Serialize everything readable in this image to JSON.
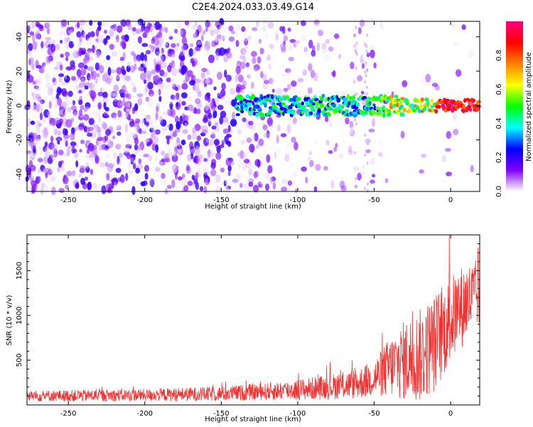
{
  "title": "C2E4.2024.033.03.49.G14",
  "chart_data": [
    {
      "type": "heatmap",
      "title": "C2E4.2024.033.03.49.G14",
      "xlabel": "Height of straight line (km)",
      "ylabel": "Frequency (Hz)",
      "xlim": [
        -277,
        19
      ],
      "ylim": [
        -50,
        49
      ],
      "xticks": [
        -250,
        -200,
        -150,
        -100,
        -50,
        0
      ],
      "yticks": [
        -40,
        -20,
        0,
        20,
        40
      ],
      "colorbar": {
        "label": "Normalized spectral amplitude",
        "ticks": [
          0.0,
          0.2,
          0.4,
          0.6,
          0.8
        ],
        "range": [
          0,
          1
        ],
        "colors": [
          "#ffffff",
          "#8000ff",
          "#0000ff",
          "#00ffff",
          "#00ff00",
          "#ffff00",
          "#ff8000",
          "#ff0000",
          "#ff0080"
        ]
      },
      "signal_band": {
        "start_km": -140,
        "end_km": 19,
        "center_hz": 0,
        "halfwidth_hz": 4
      },
      "noise_region_end_km": -80
    },
    {
      "type": "line",
      "xlabel": "Height of straight line (km)",
      "ylabel": "SNR (10 * v/v)",
      "xlim": [
        -277,
        19
      ],
      "ylim": [
        0,
        1900
      ],
      "xticks": [
        -250,
        -200,
        -150,
        -100,
        -50,
        0
      ],
      "yticks": [
        500,
        1000,
        1500
      ],
      "color": "#ee3333",
      "envelope": [
        {
          "x": -277,
          "base": 100,
          "amp": 90
        },
        {
          "x": -200,
          "base": 110,
          "amp": 100
        },
        {
          "x": -150,
          "base": 125,
          "amp": 120
        },
        {
          "x": -120,
          "base": 150,
          "amp": 140
        },
        {
          "x": -100,
          "base": 170,
          "amp": 170
        },
        {
          "x": -80,
          "base": 200,
          "amp": 200
        },
        {
          "x": -60,
          "base": 240,
          "amp": 250
        },
        {
          "x": -50,
          "base": 300,
          "amp": 300
        },
        {
          "x": -40,
          "base": 420,
          "amp": 480
        },
        {
          "x": -30,
          "base": 500,
          "amp": 650
        },
        {
          "x": -20,
          "base": 550,
          "amp": 750
        },
        {
          "x": -10,
          "base": 700,
          "amp": 800
        },
        {
          "x": 0,
          "base": 950,
          "amp": 700
        },
        {
          "x": 10,
          "base": 1150,
          "amp": 650
        },
        {
          "x": 19,
          "base": 1250,
          "amp": 550
        }
      ],
      "n_points": 1400
    }
  ]
}
